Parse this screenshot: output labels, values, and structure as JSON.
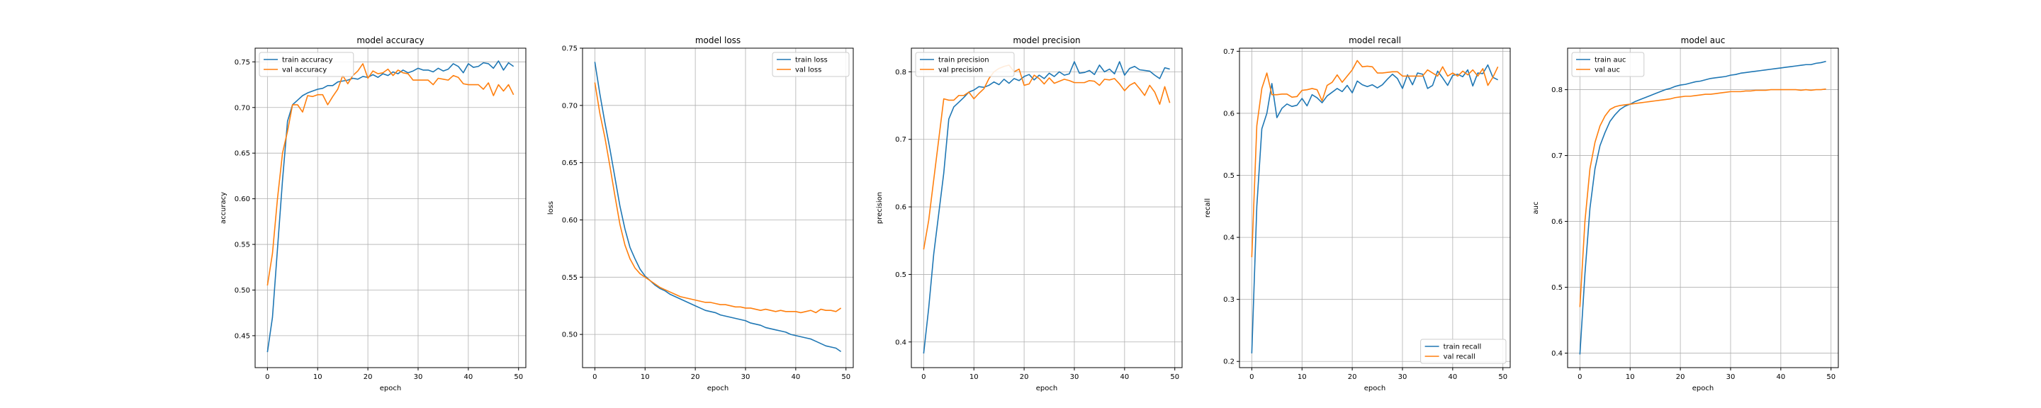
{
  "colors": {
    "train": "#1f77b4",
    "val": "#ff7f0e",
    "grid": "#b0b0b0",
    "axes": "#000000"
  },
  "chart_data": [
    {
      "type": "line",
      "title": "model accuracy",
      "xlabel": "epoch",
      "ylabel": "accuracy",
      "xlim": [
        -2.45,
        51.45
      ],
      "ylim": [
        0.415,
        0.765
      ],
      "xticks": [
        0,
        10,
        20,
        30,
        40,
        50
      ],
      "yticks": [
        0.45,
        0.5,
        0.55,
        0.6,
        0.65,
        0.7,
        0.75
      ],
      "ytick_labels": [
        "0.45",
        "0.50",
        "0.55",
        "0.60",
        "0.65",
        "0.70",
        "0.75"
      ],
      "grid": true,
      "legend_position": "top-left",
      "series": [
        {
          "name": "train accuracy",
          "color": "#1f77b4",
          "values": [
            0.432,
            0.47,
            0.545,
            0.62,
            0.685,
            0.703,
            0.708,
            0.713,
            0.716,
            0.718,
            0.72,
            0.721,
            0.724,
            0.724,
            0.728,
            0.729,
            0.73,
            0.732,
            0.731,
            0.734,
            0.733,
            0.736,
            0.733,
            0.737,
            0.735,
            0.739,
            0.737,
            0.741,
            0.738,
            0.74,
            0.743,
            0.741,
            0.741,
            0.739,
            0.743,
            0.74,
            0.742,
            0.748,
            0.745,
            0.738,
            0.748,
            0.744,
            0.745,
            0.749,
            0.748,
            0.743,
            0.751,
            0.741,
            0.749,
            0.745
          ]
        },
        {
          "name": "val accuracy",
          "color": "#ff7f0e",
          "values": [
            0.505,
            0.54,
            0.6,
            0.65,
            0.674,
            0.703,
            0.703,
            0.695,
            0.713,
            0.712,
            0.714,
            0.714,
            0.703,
            0.712,
            0.72,
            0.735,
            0.726,
            0.735,
            0.74,
            0.748,
            0.732,
            0.74,
            0.737,
            0.738,
            0.742,
            0.735,
            0.741,
            0.738,
            0.737,
            0.73,
            0.73,
            0.73,
            0.73,
            0.725,
            0.732,
            0.731,
            0.73,
            0.735,
            0.733,
            0.726,
            0.725,
            0.725,
            0.725,
            0.72,
            0.727,
            0.713,
            0.725,
            0.718,
            0.725,
            0.714
          ]
        }
      ]
    },
    {
      "type": "line",
      "title": "model loss",
      "xlabel": "epoch",
      "ylabel": "loss",
      "xlim": [
        -2.45,
        51.45
      ],
      "ylim": [
        0.471,
        0.75
      ],
      "xticks": [
        0,
        10,
        20,
        30,
        40,
        50
      ],
      "yticks": [
        0.5,
        0.55,
        0.6,
        0.65,
        0.7,
        0.75
      ],
      "ytick_labels": [
        "0.50",
        "0.55",
        "0.60",
        "0.65",
        "0.70",
        "0.75"
      ],
      "grid": true,
      "legend_position": "top-right",
      "series": [
        {
          "name": "train loss",
          "color": "#1f77b4",
          "values": [
            0.738,
            0.71,
            0.685,
            0.662,
            0.637,
            0.612,
            0.592,
            0.576,
            0.566,
            0.557,
            0.551,
            0.547,
            0.543,
            0.54,
            0.538,
            0.535,
            0.533,
            0.531,
            0.529,
            0.527,
            0.525,
            0.523,
            0.521,
            0.52,
            0.519,
            0.517,
            0.516,
            0.515,
            0.514,
            0.513,
            0.512,
            0.51,
            0.509,
            0.508,
            0.506,
            0.505,
            0.504,
            0.503,
            0.502,
            0.5,
            0.499,
            0.498,
            0.497,
            0.496,
            0.494,
            0.492,
            0.49,
            0.489,
            0.488,
            0.485
          ]
        },
        {
          "name": "val loss",
          "color": "#ff7f0e",
          "values": [
            0.72,
            0.693,
            0.672,
            0.647,
            0.621,
            0.596,
            0.578,
            0.566,
            0.558,
            0.553,
            0.55,
            0.547,
            0.544,
            0.541,
            0.539,
            0.537,
            0.535,
            0.533,
            0.532,
            0.531,
            0.53,
            0.529,
            0.528,
            0.528,
            0.527,
            0.526,
            0.526,
            0.525,
            0.524,
            0.524,
            0.523,
            0.523,
            0.522,
            0.521,
            0.522,
            0.521,
            0.52,
            0.521,
            0.52,
            0.52,
            0.52,
            0.519,
            0.52,
            0.521,
            0.519,
            0.522,
            0.521,
            0.521,
            0.52,
            0.523
          ]
        }
      ]
    },
    {
      "type": "line",
      "title": "model precision",
      "xlabel": "epoch",
      "ylabel": "precision",
      "xlim": [
        -2.45,
        51.45
      ],
      "ylim": [
        0.362,
        0.835
      ],
      "xticks": [
        0,
        10,
        20,
        30,
        40,
        50
      ],
      "yticks": [
        0.4,
        0.5,
        0.6,
        0.7,
        0.8
      ],
      "ytick_labels": [
        "0.4",
        "0.5",
        "0.6",
        "0.7",
        "0.8"
      ],
      "grid": true,
      "legend_position": "top-left",
      "series": [
        {
          "name": "train precision",
          "color": "#1f77b4",
          "values": [
            0.383,
            0.45,
            0.53,
            0.59,
            0.65,
            0.73,
            0.748,
            0.755,
            0.762,
            0.77,
            0.773,
            0.778,
            0.777,
            0.78,
            0.785,
            0.781,
            0.789,
            0.783,
            0.79,
            0.787,
            0.793,
            0.796,
            0.788,
            0.795,
            0.79,
            0.798,
            0.793,
            0.8,
            0.795,
            0.797,
            0.815,
            0.798,
            0.799,
            0.802,
            0.796,
            0.81,
            0.8,
            0.804,
            0.797,
            0.815,
            0.795,
            0.805,
            0.808,
            0.803,
            0.802,
            0.801,
            0.795,
            0.79,
            0.806,
            0.804
          ]
        },
        {
          "name": "val precision",
          "color": "#ff7f0e",
          "values": [
            0.537,
            0.58,
            0.64,
            0.7,
            0.76,
            0.758,
            0.758,
            0.765,
            0.765,
            0.77,
            0.76,
            0.768,
            0.775,
            0.79,
            0.8,
            0.805,
            0.808,
            0.81,
            0.8,
            0.804,
            0.78,
            0.782,
            0.795,
            0.79,
            0.782,
            0.791,
            0.783,
            0.786,
            0.789,
            0.787,
            0.784,
            0.784,
            0.784,
            0.787,
            0.786,
            0.78,
            0.789,
            0.788,
            0.79,
            0.782,
            0.772,
            0.78,
            0.784,
            0.775,
            0.765,
            0.78,
            0.77,
            0.752,
            0.778,
            0.754
          ]
        }
      ]
    },
    {
      "type": "line",
      "title": "model recall",
      "xlabel": "epoch",
      "ylabel": "recall",
      "xlim": [
        -2.45,
        51.45
      ],
      "ylim": [
        0.19,
        0.705
      ],
      "xticks": [
        0,
        10,
        20,
        30,
        40,
        50
      ],
      "yticks": [
        0.2,
        0.3,
        0.4,
        0.5,
        0.6,
        0.7
      ],
      "ytick_labels": [
        "0.2",
        "0.3",
        "0.4",
        "0.5",
        "0.6",
        "0.7"
      ],
      "grid": true,
      "legend_position": "bottom-right",
      "series": [
        {
          "name": "train recall",
          "color": "#1f77b4",
          "values": [
            0.213,
            0.45,
            0.575,
            0.6,
            0.648,
            0.593,
            0.608,
            0.615,
            0.611,
            0.613,
            0.624,
            0.612,
            0.63,
            0.625,
            0.617,
            0.628,
            0.634,
            0.64,
            0.635,
            0.645,
            0.633,
            0.652,
            0.646,
            0.643,
            0.646,
            0.641,
            0.646,
            0.655,
            0.663,
            0.656,
            0.64,
            0.662,
            0.646,
            0.665,
            0.663,
            0.64,
            0.645,
            0.668,
            0.657,
            0.645,
            0.661,
            0.663,
            0.659,
            0.67,
            0.644,
            0.665,
            0.664,
            0.678,
            0.658,
            0.654
          ]
        },
        {
          "name": "val recall",
          "color": "#ff7f0e",
          "values": [
            0.368,
            0.58,
            0.64,
            0.665,
            0.63,
            0.63,
            0.631,
            0.631,
            0.626,
            0.627,
            0.637,
            0.638,
            0.64,
            0.638,
            0.62,
            0.645,
            0.65,
            0.662,
            0.65,
            0.66,
            0.67,
            0.685,
            0.675,
            0.676,
            0.675,
            0.665,
            0.665,
            0.666,
            0.667,
            0.667,
            0.66,
            0.66,
            0.66,
            0.66,
            0.66,
            0.67,
            0.665,
            0.66,
            0.675,
            0.66,
            0.665,
            0.66,
            0.668,
            0.662,
            0.67,
            0.66,
            0.672,
            0.645,
            0.658,
            0.675
          ]
        }
      ]
    },
    {
      "type": "line",
      "title": "model auc",
      "xlabel": "epoch",
      "ylabel": "auc",
      "xlim": [
        -2.45,
        51.45
      ],
      "ylim": [
        0.378,
        0.863
      ],
      "xticks": [
        0,
        10,
        20,
        30,
        40,
        50
      ],
      "yticks": [
        0.4,
        0.5,
        0.6,
        0.7,
        0.8
      ],
      "ytick_labels": [
        "0.4",
        "0.5",
        "0.6",
        "0.7",
        "0.8"
      ],
      "grid": true,
      "legend_position": "top-left",
      "series": [
        {
          "name": "train auc",
          "color": "#1f77b4",
          "values": [
            0.398,
            0.52,
            0.62,
            0.68,
            0.715,
            0.735,
            0.752,
            0.762,
            0.77,
            0.775,
            0.778,
            0.782,
            0.785,
            0.788,
            0.791,
            0.794,
            0.797,
            0.8,
            0.802,
            0.805,
            0.807,
            0.808,
            0.81,
            0.812,
            0.813,
            0.815,
            0.817,
            0.818,
            0.819,
            0.82,
            0.822,
            0.823,
            0.825,
            0.826,
            0.827,
            0.828,
            0.829,
            0.83,
            0.831,
            0.832,
            0.833,
            0.834,
            0.835,
            0.836,
            0.837,
            0.838,
            0.838,
            0.84,
            0.841,
            0.843
          ]
        },
        {
          "name": "val auc",
          "color": "#ff7f0e",
          "values": [
            0.47,
            0.6,
            0.68,
            0.72,
            0.745,
            0.76,
            0.77,
            0.774,
            0.776,
            0.777,
            0.778,
            0.779,
            0.78,
            0.781,
            0.782,
            0.783,
            0.784,
            0.785,
            0.786,
            0.788,
            0.789,
            0.79,
            0.79,
            0.791,
            0.792,
            0.793,
            0.793,
            0.794,
            0.795,
            0.796,
            0.797,
            0.797,
            0.797,
            0.798,
            0.798,
            0.799,
            0.799,
            0.799,
            0.8,
            0.8,
            0.8,
            0.8,
            0.8,
            0.8,
            0.799,
            0.8,
            0.799,
            0.8,
            0.8,
            0.801
          ]
        }
      ]
    }
  ]
}
